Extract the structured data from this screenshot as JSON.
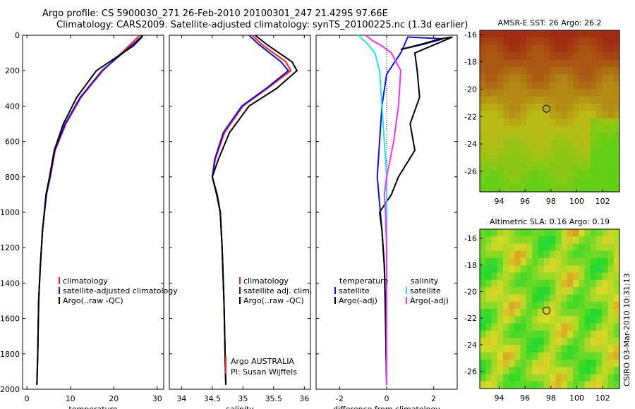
{
  "header": {
    "title_line1": "Argo profile: CS 5900030_271 26-Feb-2010 20100301_247 21.429S 97.66E",
    "title_line2": "Climatology: CARS2009. Satellite-adjusted climatology: synTS_20100225.nc (1.3d earlier)"
  },
  "side_label": "CSIRO 03-Mar-2010 10:31:13",
  "colors": {
    "climatology": "#ff2020",
    "satellite": "#1010e0",
    "argo": "#000000",
    "sal_satellite": "#20e8e8",
    "sal_argo": "#ff30ff"
  },
  "chart_data": [
    {
      "type": "line",
      "xlabel": "temperature",
      "ylim": [
        2000,
        0
      ],
      "yticks": [
        0,
        200,
        400,
        600,
        800,
        1000,
        1200,
        1400,
        1600,
        1800,
        2000
      ],
      "xlim": [
        -1,
        31.5
      ],
      "xticks": [
        0,
        10,
        20,
        30
      ],
      "legend": [
        "climatology",
        "satellite-adjusted climatology",
        "Argo(..raw -QC)"
      ],
      "series": [
        {
          "name": "climatology",
          "color": "#ff2020",
          "x": [
            26.0,
            25.6,
            23.5,
            17.5,
            12.5,
            9.0,
            6.5,
            5.4,
            4.5,
            3.6,
            3.1,
            2.7,
            2.5,
            2.3
          ],
          "y": [
            0,
            10,
            60,
            200,
            350,
            500,
            650,
            800,
            900,
            1100,
            1300,
            1500,
            1800,
            1975
          ]
        },
        {
          "name": "satellite-adjusted climatology",
          "color": "#1010e0",
          "x": [
            26.5,
            26.3,
            24.0,
            17.3,
            12.3,
            8.8,
            6.4,
            5.3,
            4.5,
            3.6,
            3.1,
            2.7,
            2.5,
            2.3
          ],
          "y": [
            0,
            10,
            60,
            200,
            350,
            500,
            650,
            800,
            900,
            1100,
            1300,
            1500,
            1800,
            1975
          ]
        },
        {
          "name": "Argo(..raw -QC)",
          "color": "#000000",
          "x": [
            26.6,
            26.5,
            24.5,
            16.0,
            11.5,
            8.4,
            6.3,
            5.2,
            4.4,
            3.6,
            3.1,
            2.7,
            2.5,
            2.3
          ],
          "y": [
            0,
            10,
            60,
            200,
            350,
            500,
            650,
            800,
            900,
            1100,
            1300,
            1500,
            1800,
            1975
          ]
        }
      ]
    },
    {
      "type": "line",
      "xlabel": "salinity",
      "ylim": [
        2000,
        0
      ],
      "xlim": [
        33.8,
        36.1
      ],
      "xticks": [
        34,
        34.5,
        35,
        35.5,
        36
      ],
      "legend": [
        "climatology",
        "satellite adj. clim.",
        "Argo(..raw -QC)"
      ],
      "annotation_line1": "Argo AUSTRALIA",
      "annotation_line2": "PI: Susan Wijffels",
      "series": [
        {
          "name": "climatology",
          "color": "#ff2020",
          "x": [
            35.15,
            35.3,
            35.7,
            35.78,
            35.4,
            35.0,
            34.7,
            34.55,
            34.5,
            34.57,
            34.63,
            34.66,
            34.69,
            34.72
          ],
          "y": [
            0,
            50,
            150,
            200,
            300,
            400,
            550,
            700,
            800,
            900,
            1000,
            1200,
            1500,
            1975
          ]
        },
        {
          "name": "satellite adj. clim.",
          "color": "#1010e0",
          "x": [
            35.1,
            35.25,
            35.62,
            35.74,
            35.38,
            34.98,
            34.68,
            34.54,
            34.5,
            34.57,
            34.63,
            34.66,
            34.69,
            34.72
          ],
          "y": [
            0,
            50,
            150,
            200,
            300,
            400,
            550,
            700,
            800,
            900,
            1000,
            1200,
            1500,
            1975
          ]
        },
        {
          "name": "Argo(..raw -QC)",
          "color": "#000000",
          "x": [
            35.2,
            35.38,
            35.8,
            35.88,
            35.55,
            35.1,
            34.78,
            34.6,
            34.5,
            34.58,
            34.63,
            34.66,
            34.69,
            34.72
          ],
          "y": [
            0,
            50,
            150,
            200,
            300,
            400,
            550,
            700,
            800,
            900,
            1000,
            1200,
            1500,
            1975
          ]
        }
      ]
    },
    {
      "type": "line",
      "xlabel": "difference from climatology",
      "ylim": [
        2000,
        0
      ],
      "xlim": [
        -3.0,
        3.0
      ],
      "xticks": [
        -2,
        0,
        2
      ],
      "legend_headers": [
        "temperature",
        "salinity"
      ],
      "legend": [
        "satellite",
        "Argo(-adj)",
        "satellite",
        "Argo(-adj)"
      ],
      "series": [
        {
          "name": "satellite",
          "group": "temperature",
          "color": "#1010e0",
          "x": [
            0.6,
            1.6,
            2.4,
            0.9,
            0.6,
            0.0,
            -0.2,
            -0.3,
            -0.4,
            -0.3,
            -0.2,
            -0.1,
            -0.05,
            -0.02,
            0.0
          ],
          "y": [
            80,
            50,
            20,
            10,
            100,
            220,
            400,
            600,
            800,
            950,
            1100,
            1300,
            1500,
            1800,
            1975
          ]
        },
        {
          "name": "Argo(-adj)",
          "group": "temperature",
          "color": "#000000",
          "x": [
            0.6,
            1.5,
            2.3,
            2.8,
            1.2,
            1.3,
            1.4,
            1.0,
            1.2,
            0.5,
            0.2,
            -0.3,
            -0.2,
            -0.1,
            -0.05,
            0.0
          ],
          "y": [
            80,
            50,
            20,
            10,
            100,
            200,
            350,
            500,
            650,
            800,
            900,
            1000,
            1100,
            1300,
            1600,
            1975
          ]
        },
        {
          "name": "satellite",
          "group": "salinity",
          "color": "#20e8e8",
          "x": [
            -1.2,
            -0.8,
            -0.5,
            -0.3,
            -0.2,
            -0.1,
            0.0,
            0.0,
            0.0,
            0.0
          ],
          "y": [
            0,
            50,
            100,
            200,
            400,
            600,
            800,
            1000,
            1500,
            1975
          ]
        },
        {
          "name": "Argo(-adj)",
          "group": "salinity",
          "color": "#ff30ff",
          "x": [
            -0.9,
            -0.6,
            -0.2,
            0.2,
            0.6,
            0.5,
            0.3,
            0.0,
            -0.1,
            -0.05,
            0.0,
            0.0,
            0.0
          ],
          "y": [
            0,
            30,
            60,
            100,
            200,
            400,
            600,
            800,
            900,
            1000,
            1200,
            1500,
            1975
          ]
        }
      ]
    },
    {
      "type": "heatmap",
      "title": "AMSR-E SST: 26 Argo: 26.2",
      "xlim": [
        92.5,
        103.3
      ],
      "ylim": [
        -27.5,
        -15.7
      ],
      "xticks": [
        94,
        96,
        98,
        100,
        102
      ],
      "yticks": [
        -16,
        -18,
        -20,
        -22,
        -24,
        -26
      ],
      "marker": {
        "x": 97.66,
        "y": -21.43
      }
    },
    {
      "type": "heatmap",
      "title": "Altimetric SLA: 0.16 Argo: 0.19",
      "xlim": [
        92.5,
        103.3
      ],
      "ylim": [
        -27.3,
        -15.3
      ],
      "xticks": [
        94,
        96,
        98,
        100,
        102
      ],
      "yticks": [
        -16,
        -18,
        -20,
        -22,
        -24,
        -26
      ],
      "marker": {
        "x": 97.66,
        "y": -21.43
      }
    }
  ]
}
